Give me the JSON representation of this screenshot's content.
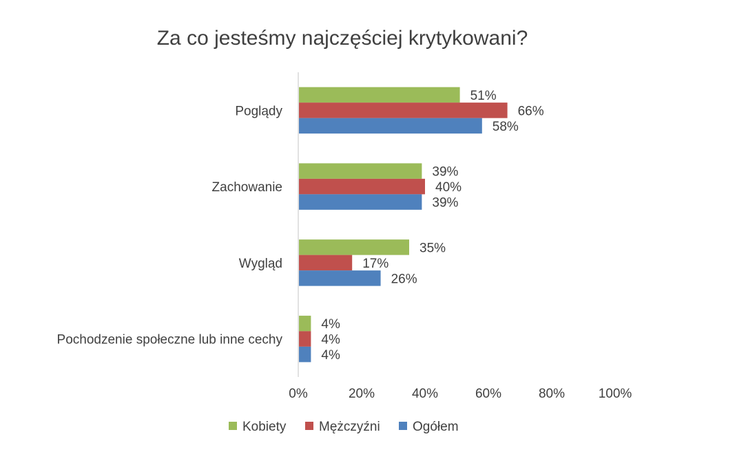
{
  "chart_data": {
    "type": "bar",
    "orientation": "horizontal",
    "title": "Za co jesteśmy najczęściej krytykowani?",
    "categories": [
      "Poglądy",
      "Zachowanie",
      "Wygląd",
      "Pochodzenie społeczne lub inne cechy"
    ],
    "series": [
      {
        "name": "Kobiety",
        "color": "#9BBB59",
        "values": [
          51,
          39,
          35,
          4
        ],
        "labels": [
          "51%",
          "39%",
          "35%",
          "4%"
        ]
      },
      {
        "name": "Mężczyźni",
        "color": "#C0504D",
        "values": [
          66,
          40,
          17,
          4
        ],
        "labels": [
          "66%",
          "40%",
          "17%",
          "4%"
        ]
      },
      {
        "name": "Ogółem",
        "color": "#4F81BD",
        "values": [
          58,
          39,
          26,
          4
        ],
        "labels": [
          "58%",
          "39%",
          "26%",
          "4%"
        ]
      }
    ],
    "xlim": [
      0,
      100
    ],
    "x_ticks": [
      0,
      20,
      40,
      60,
      80,
      100
    ],
    "x_tick_labels": [
      "0%",
      "20%",
      "40%",
      "60%",
      "80%",
      "100%"
    ],
    "grid": false,
    "legend": "bottom"
  }
}
